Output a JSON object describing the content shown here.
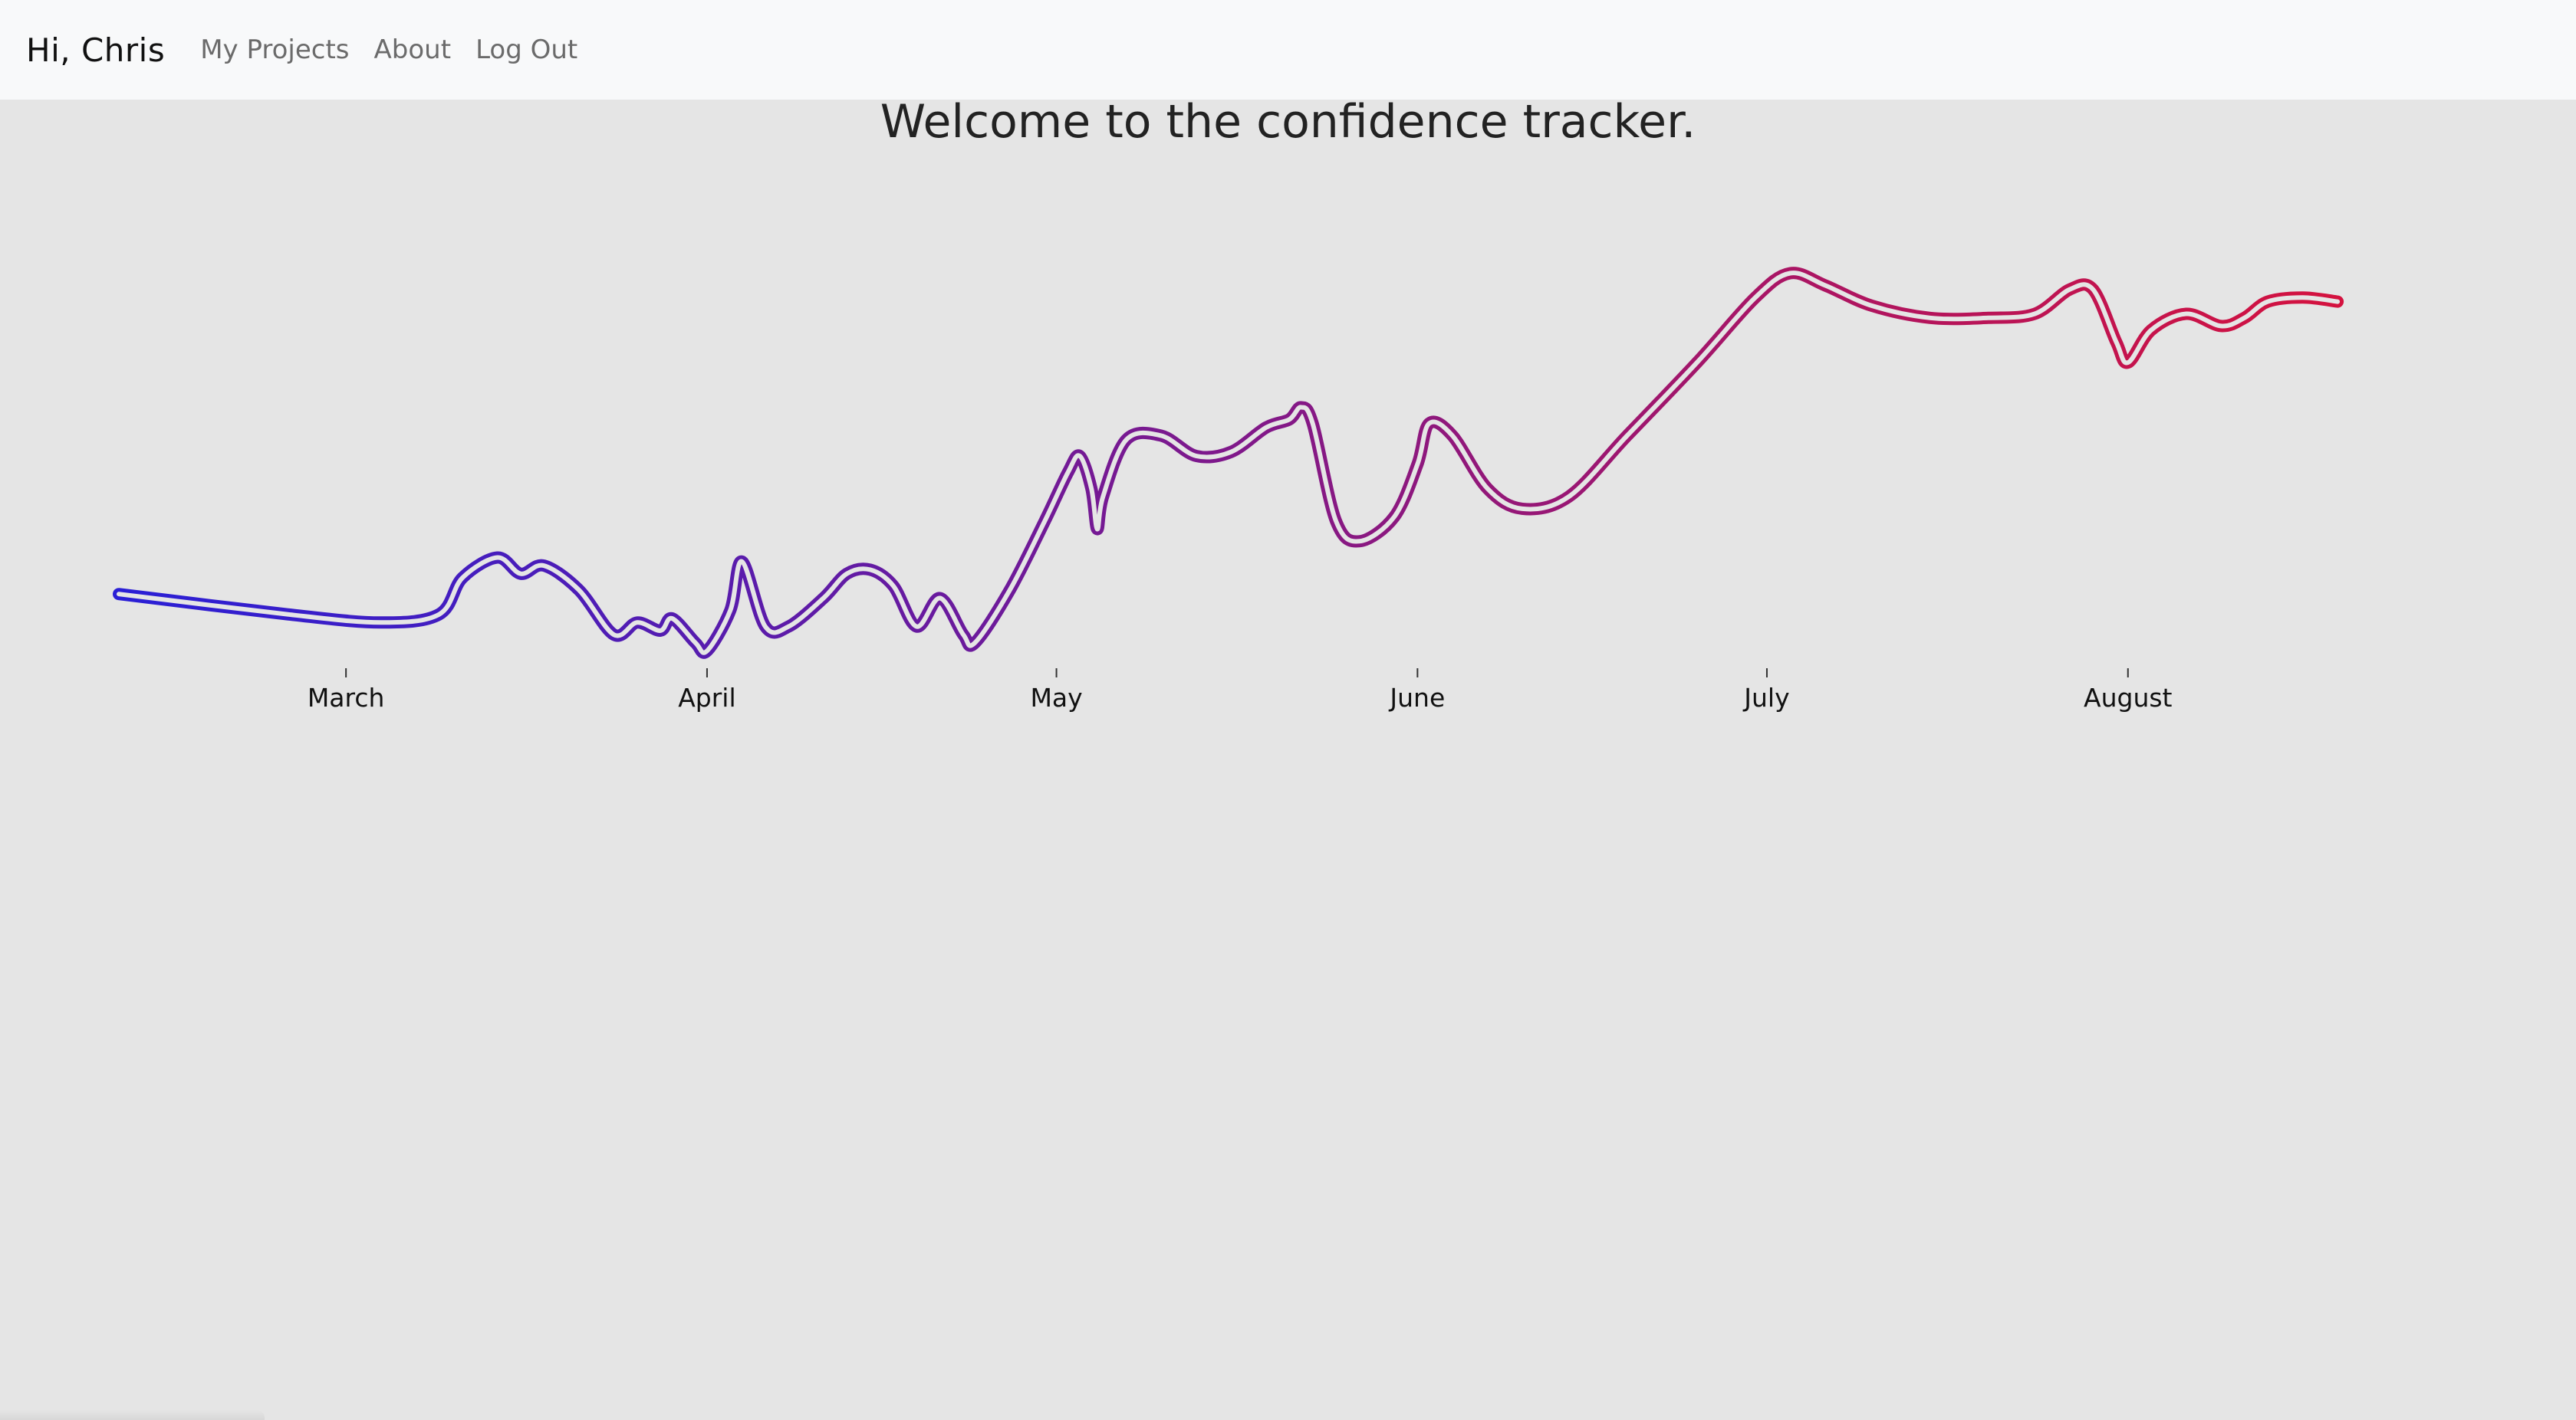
{
  "navbar": {
    "brand": "Hi, Chris",
    "links": [
      {
        "label": "My Projects"
      },
      {
        "label": "About"
      },
      {
        "label": "Log Out"
      }
    ]
  },
  "page": {
    "title": "Welcome to the confidence tracker."
  },
  "colors": {
    "line_start": "#2a1fd6",
    "line_end": "#d4123f",
    "background": "#e5e5e5",
    "navbar_bg": "#f8f9fa"
  },
  "chart_data": {
    "type": "line",
    "title": "",
    "xlabel": "",
    "ylabel": "",
    "x_ticks": [
      "March",
      "April",
      "May",
      "June",
      "July",
      "August"
    ],
    "x_tick_days": [
      0,
      31,
      61,
      92,
      122,
      153
    ],
    "x_domain_days": [
      -19.5,
      181
    ],
    "ylim": [
      0,
      100
    ],
    "y_axis_visible": false,
    "grid": false,
    "legend": "none",
    "series": [
      {
        "points": [
          [
            -19.5,
            16
          ],
          [
            -5,
            11
          ],
          [
            3,
            9
          ],
          [
            8,
            11
          ],
          [
            10,
            20
          ],
          [
            13,
            25
          ],
          [
            15,
            21
          ],
          [
            17,
            23
          ],
          [
            20,
            17
          ],
          [
            23,
            6
          ],
          [
            25,
            9
          ],
          [
            27,
            7
          ],
          [
            28,
            10
          ],
          [
            30,
            4
          ],
          [
            31,
            2
          ],
          [
            33,
            12
          ],
          [
            34,
            24
          ],
          [
            36,
            8
          ],
          [
            38,
            8
          ],
          [
            41,
            15
          ],
          [
            43,
            21
          ],
          [
            45,
            22
          ],
          [
            47,
            18
          ],
          [
            49,
            8
          ],
          [
            51,
            15
          ],
          [
            53,
            6
          ],
          [
            54,
            4
          ],
          [
            57,
            17
          ],
          [
            60,
            34
          ],
          [
            62,
            46
          ],
          [
            63,
            50
          ],
          [
            64,
            42
          ],
          [
            64.5,
            32
          ],
          [
            65,
            40
          ],
          [
            67,
            54
          ],
          [
            70,
            55
          ],
          [
            73,
            50
          ],
          [
            76,
            51
          ],
          [
            79,
            57
          ],
          [
            81,
            59
          ],
          [
            82,
            62
          ],
          [
            83,
            58
          ],
          [
            85,
            34
          ],
          [
            87,
            29
          ],
          [
            90,
            35
          ],
          [
            92,
            48
          ],
          [
            93,
            58
          ],
          [
            95,
            55
          ],
          [
            98,
            42
          ],
          [
            101,
            37
          ],
          [
            105,
            40
          ],
          [
            110,
            55
          ],
          [
            116,
            73
          ],
          [
            121,
            89
          ],
          [
            124,
            95
          ],
          [
            127,
            92
          ],
          [
            131,
            87
          ],
          [
            136,
            84
          ],
          [
            141,
            84
          ],
          [
            145,
            85
          ],
          [
            148,
            91
          ],
          [
            150,
            91
          ],
          [
            152,
            78
          ],
          [
            153,
            73
          ],
          [
            155,
            81
          ],
          [
            158,
            85
          ],
          [
            161,
            82
          ],
          [
            163,
            84
          ],
          [
            165,
            88
          ],
          [
            168,
            89
          ],
          [
            171,
            88
          ]
        ]
      }
    ]
  }
}
